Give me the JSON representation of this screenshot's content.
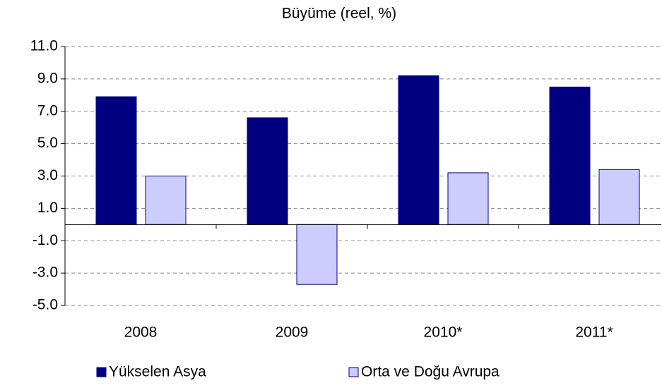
{
  "chart_data": {
    "type": "bar",
    "title": "Büyüme (reel, %)",
    "categories": [
      "2008",
      "2009",
      "2010*",
      "2011*"
    ],
    "series": [
      {
        "name": "Yükselen Asya",
        "color": "#000080",
        "values": [
          7.9,
          6.6,
          9.2,
          8.5
        ]
      },
      {
        "name": "Orta ve Doğu Avrupa",
        "color": "#ccccff",
        "values": [
          3.0,
          -3.7,
          3.2,
          3.4
        ]
      }
    ],
    "ylim": [
      -5,
      11
    ],
    "yticks": [
      {
        "value": -5,
        "label": "-5.0"
      },
      {
        "value": -3,
        "label": "-3.0"
      },
      {
        "value": -1,
        "label": "-1.0"
      },
      {
        "value": 1,
        "label": "1.0"
      },
      {
        "value": 3,
        "label": "3.0"
      },
      {
        "value": 5,
        "label": "5.0"
      },
      {
        "value": 7,
        "label": "7.0"
      },
      {
        "value": 9,
        "label": "9.0"
      },
      {
        "value": 11,
        "label": "11.0"
      }
    ],
    "grid": true,
    "legend": "bottom"
  }
}
